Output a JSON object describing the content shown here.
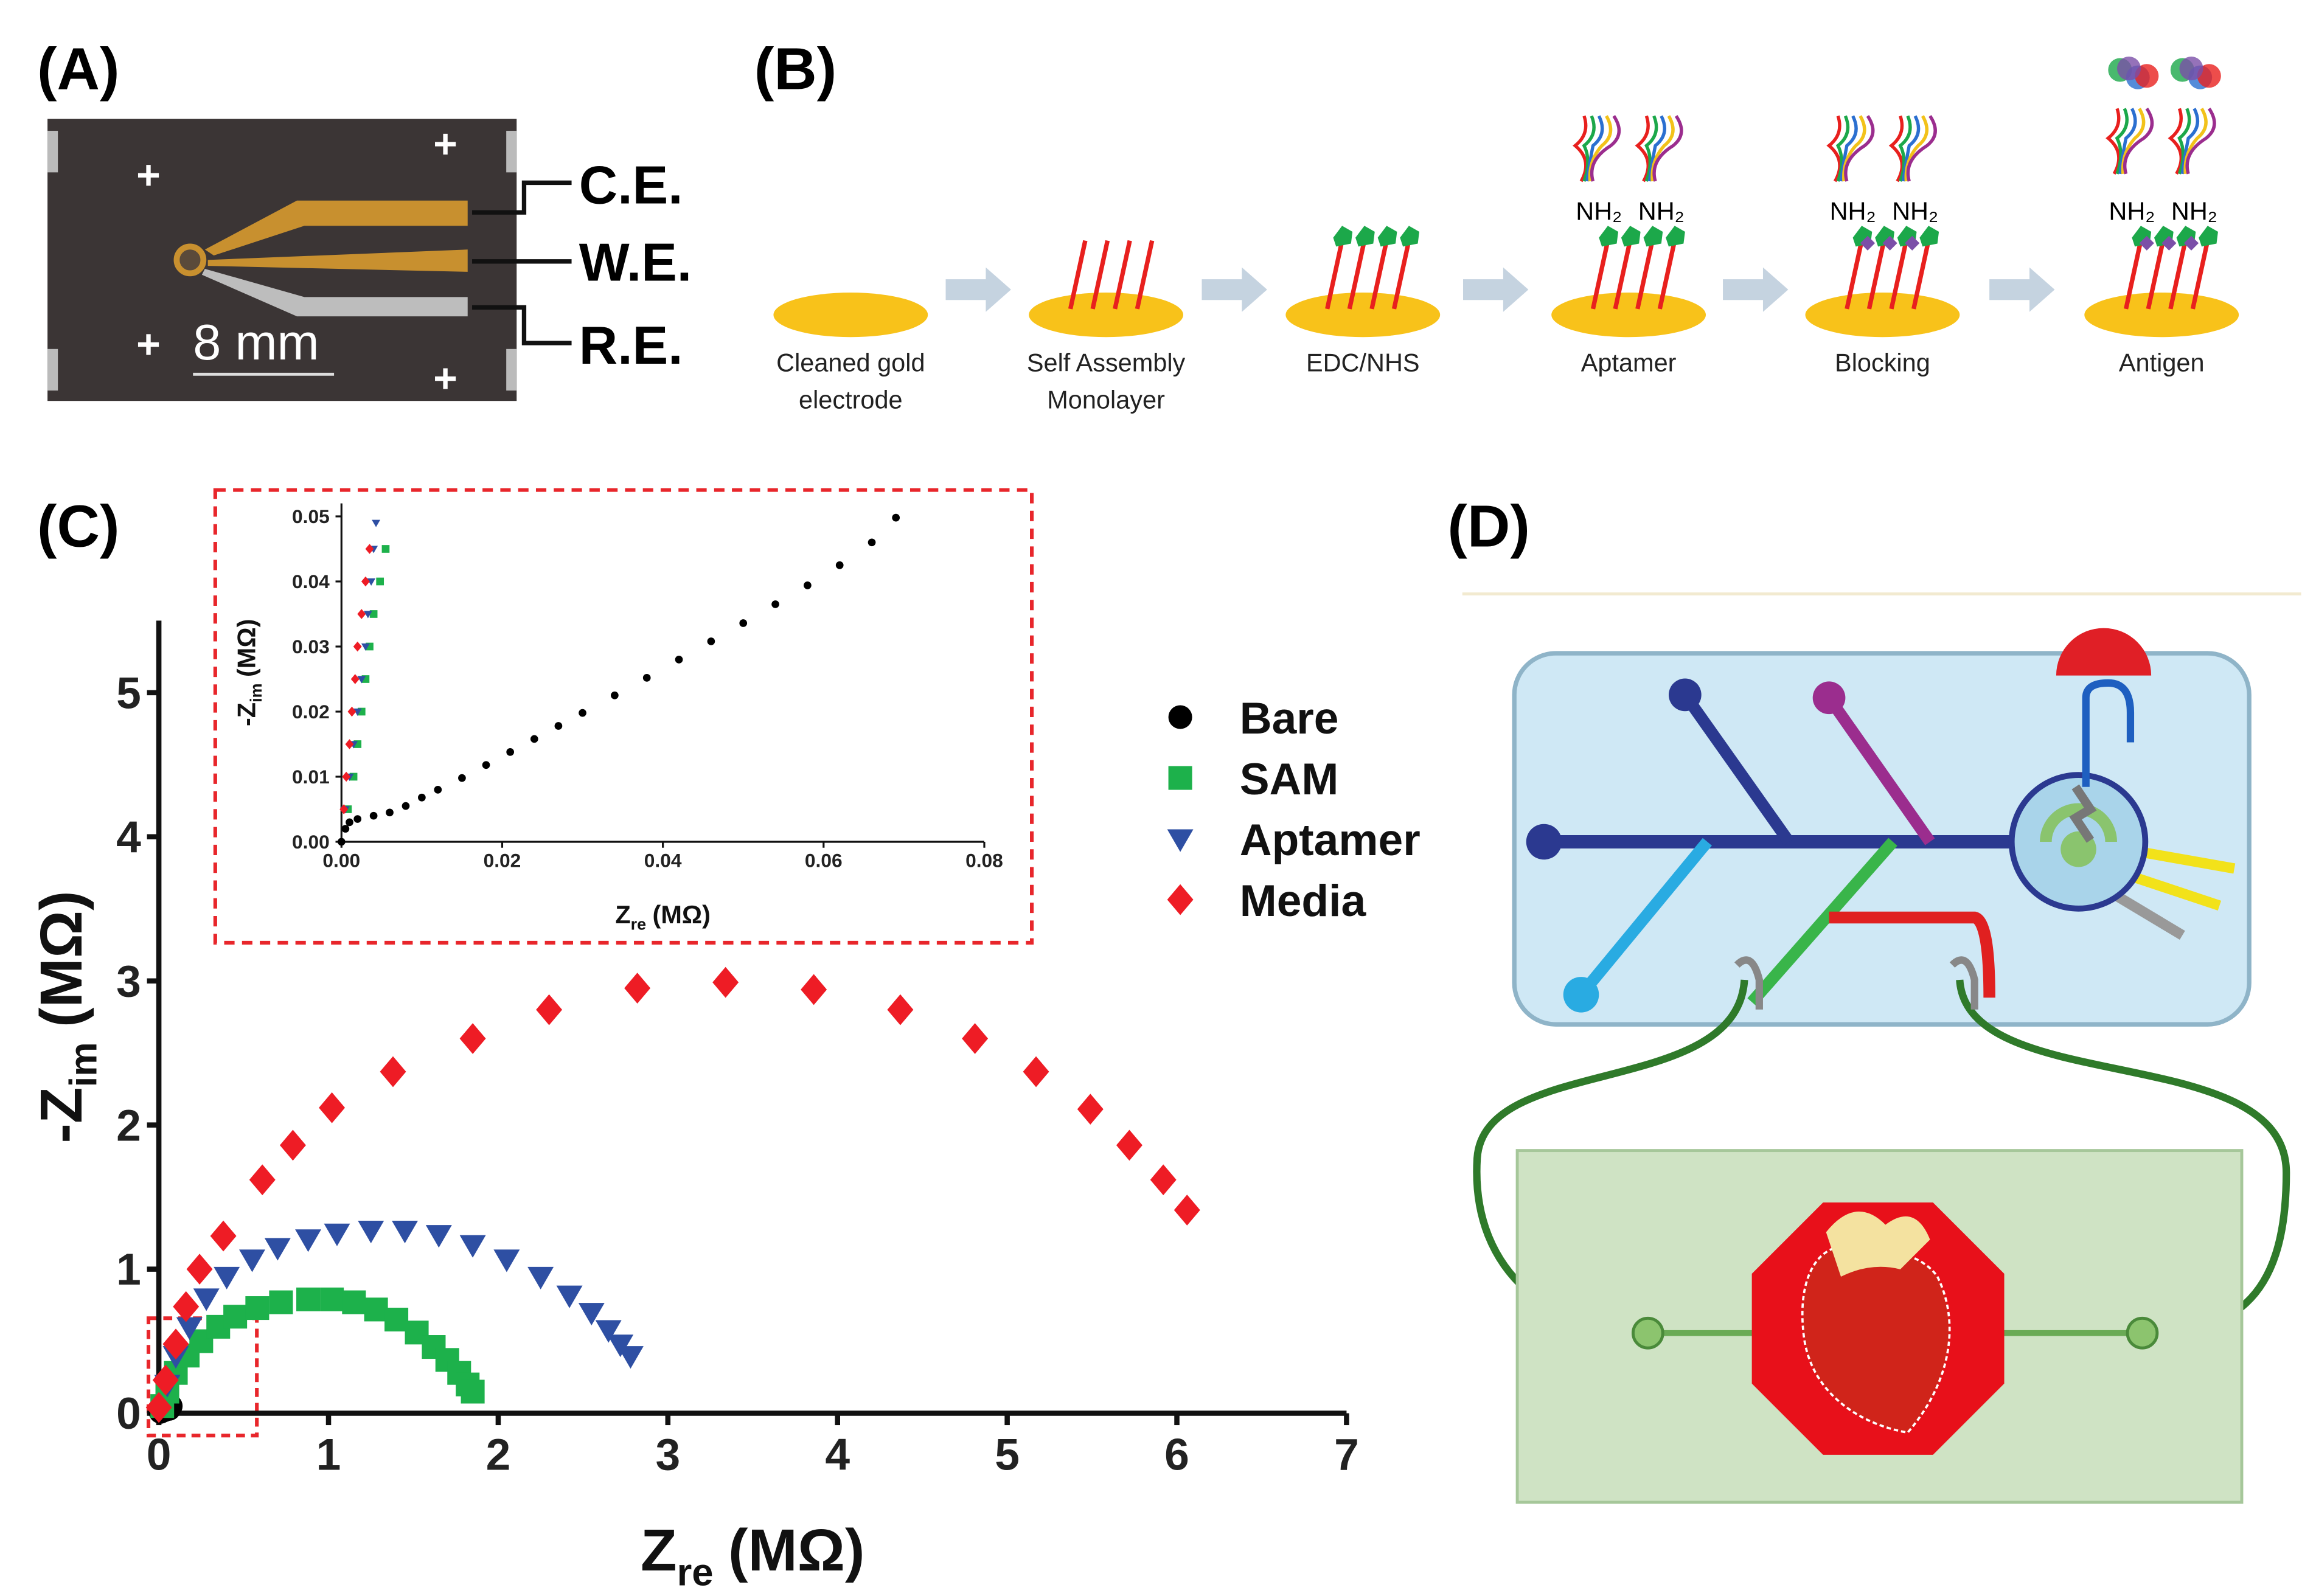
{
  "figure": {
    "panel_labels": [
      "(A)",
      "(B)",
      "(C)",
      "(D)"
    ],
    "electrode_labels": [
      "C.E.",
      "W.E.",
      "R.E."
    ],
    "scale_bar": "8 mm",
    "steps": [
      [
        "Cleaned gold",
        "electrode"
      ],
      [
        "Self Assembly",
        "Monolayer"
      ],
      [
        "EDC/NHS"
      ],
      [
        "Aptamer"
      ],
      [
        "Blocking"
      ],
      [
        "Antigen"
      ]
    ],
    "amine": "NH₂"
  },
  "chart_data": [
    {
      "type": "scatter",
      "xlabel": {
        "text": "Z",
        "sub": "re",
        "unit": "(MΩ)"
      },
      "ylabel": {
        "text": "-Z",
        "sub": "im",
        "unit": "(MΩ)"
      },
      "xlim": [
        0,
        7
      ],
      "ylim": [
        0,
        5.5
      ],
      "xticks": [
        0,
        1,
        2,
        3,
        4,
        5,
        6,
        7
      ],
      "yticks": [
        0,
        1,
        2,
        3,
        4,
        5
      ],
      "legend": "right",
      "series": [
        {
          "name": "Bare",
          "color": "#000000",
          "marker": "circle",
          "x": [
            0.01,
            0.03,
            0.06,
            0.07
          ],
          "values": [
            0.01,
            0.02,
            0.03,
            0.05
          ]
        },
        {
          "name": "SAM",
          "color": "#1db14b",
          "marker": "square",
          "x": [
            0.02,
            0.05,
            0.1,
            0.17,
            0.25,
            0.35,
            0.45,
            0.58,
            0.72,
            0.88,
            1.02,
            1.15,
            1.28,
            1.4,
            1.52,
            1.62,
            1.7,
            1.77,
            1.82,
            1.85
          ],
          "values": [
            0.05,
            0.15,
            0.28,
            0.4,
            0.5,
            0.6,
            0.67,
            0.73,
            0.77,
            0.79,
            0.79,
            0.77,
            0.72,
            0.65,
            0.56,
            0.46,
            0.37,
            0.28,
            0.2,
            0.15
          ]
        },
        {
          "name": "Aptamer",
          "color": "#2e4fa3",
          "marker": "triangle",
          "x": [
            0.05,
            0.1,
            0.18,
            0.28,
            0.4,
            0.55,
            0.7,
            0.88,
            1.05,
            1.25,
            1.45,
            1.65,
            1.85,
            2.05,
            2.25,
            2.42,
            2.55,
            2.65,
            2.72,
            2.78
          ],
          "values": [
            0.2,
            0.4,
            0.6,
            0.8,
            0.95,
            1.07,
            1.15,
            1.21,
            1.25,
            1.27,
            1.27,
            1.24,
            1.17,
            1.07,
            0.95,
            0.82,
            0.7,
            0.58,
            0.48,
            0.4
          ]
        },
        {
          "name": "Media",
          "color": "#ee1c25",
          "marker": "diamond",
          "x": [
            0,
            0.04,
            0.1,
            0.16,
            0.24,
            0.38,
            0.61,
            0.79,
            1.02,
            1.38,
            1.85,
            2.3,
            2.82,
            3.34,
            3.86,
            4.37,
            4.81,
            5.17,
            5.49,
            5.72,
            5.92,
            6.06
          ],
          "values": [
            0.04,
            0.23,
            0.48,
            0.74,
            1.0,
            1.23,
            1.62,
            1.86,
            2.12,
            2.37,
            2.6,
            2.8,
            2.95,
            2.99,
            2.94,
            2.8,
            2.6,
            2.37,
            2.11,
            1.86,
            1.62,
            1.41
          ]
        }
      ]
    },
    {
      "type": "scatter",
      "xlabel": {
        "text": "Z",
        "sub": "re",
        "unit": "(MΩ)"
      },
      "ylabel": {
        "text": "-Z",
        "sub": "im",
        "unit": "(MΩ)"
      },
      "xlim": [
        0,
        0.08
      ],
      "ylim": [
        0,
        0.052
      ],
      "xticks": [
        {
          "value": 0,
          "label": "0.00"
        },
        0.02,
        0.04,
        0.06,
        0.08
      ],
      "yticks": [
        {
          "value": 0,
          "label": "0.00"
        },
        0.01,
        0.02,
        0.03,
        0.04,
        0.05
      ],
      "series": [
        {
          "color": "#000000",
          "marker": "circle",
          "x": [
            0,
            0.0005,
            0.001,
            0.002,
            0.004,
            0.006,
            0.008,
            0.01,
            0.012,
            0.015,
            0.018,
            0.021,
            0.024,
            0.027,
            0.03,
            0.034,
            0.038,
            0.042,
            0.046,
            0.05,
            0.054,
            0.058,
            0.062,
            0.066,
            0.069
          ],
          "values": [
            0,
            0.002,
            0.003,
            0.0035,
            0.004,
            0.0045,
            0.0055,
            0.0068,
            0.008,
            0.0098,
            0.0118,
            0.0138,
            0.0158,
            0.0178,
            0.0198,
            0.0225,
            0.0252,
            0.028,
            0.0308,
            0.0336,
            0.0365,
            0.0394,
            0.0425,
            0.046,
            0.0498
          ]
        },
        {
          "color": "#1db14b",
          "marker": "square",
          "x": [
            0.0008,
            0.0015,
            0.002,
            0.0025,
            0.003,
            0.0035,
            0.004,
            0.0048,
            0.0055
          ],
          "values": [
            0.005,
            0.01,
            0.015,
            0.02,
            0.025,
            0.03,
            0.035,
            0.04,
            0.045
          ]
        },
        {
          "color": "#2e4fa3",
          "marker": "triangle",
          "x": [
            0.0005,
            0.001,
            0.0015,
            0.002,
            0.0025,
            0.003,
            0.0033,
            0.0037,
            0.004,
            0.0043
          ],
          "values": [
            0.005,
            0.01,
            0.015,
            0.02,
            0.025,
            0.03,
            0.035,
            0.04,
            0.045,
            0.049
          ]
        },
        {
          "color": "#ee1c25",
          "marker": "diamond",
          "x": [
            0.0003,
            0.0006,
            0.001,
            0.0013,
            0.0017,
            0.002,
            0.0025,
            0.003,
            0.0035
          ],
          "values": [
            0.005,
            0.01,
            0.015,
            0.02,
            0.025,
            0.03,
            0.035,
            0.04,
            0.045
          ]
        }
      ]
    }
  ]
}
